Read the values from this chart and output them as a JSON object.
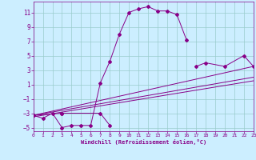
{
  "xlabel": "Windchill (Refroidissement éolien,°C)",
  "bg_color": "#cceeff",
  "line_color": "#880088",
  "grid_color": "#99cccc",
  "text_color": "#880088",
  "xlim": [
    0,
    23
  ],
  "ylim": [
    -5.5,
    12.5
  ],
  "xticks": [
    0,
    1,
    2,
    3,
    4,
    5,
    6,
    7,
    8,
    9,
    10,
    11,
    12,
    13,
    14,
    15,
    16,
    17,
    18,
    19,
    20,
    21,
    22,
    23
  ],
  "yticks": [
    -5,
    -3,
    -1,
    1,
    3,
    5,
    7,
    9,
    11
  ],
  "curve1_x": [
    0,
    1,
    2,
    3,
    4,
    5,
    6,
    7,
    8,
    9,
    10,
    11,
    12,
    13,
    14,
    15,
    16
  ],
  "curve1_y": [
    -3.3,
    -3.7,
    -3.0,
    -5.0,
    -4.7,
    -4.7,
    -4.7,
    1.2,
    4.2,
    8.0,
    11.0,
    11.5,
    11.8,
    11.2,
    11.2,
    10.7,
    7.2
  ],
  "curve2_x": [
    0,
    3,
    7,
    8,
    17,
    18,
    20,
    22,
    23
  ],
  "curve2_y": [
    -3.3,
    -3.0,
    -3.0,
    -4.7,
    3.5,
    4.0,
    3.5,
    5.0,
    3.5
  ],
  "trend1_x": [
    0,
    23
  ],
  "trend1_y": [
    -3.3,
    2.0
  ],
  "trend2_x": [
    0,
    23
  ],
  "trend2_y": [
    -3.5,
    1.5
  ],
  "trend3_x": [
    0,
    23
  ],
  "trend3_y": [
    -3.3,
    3.5
  ]
}
